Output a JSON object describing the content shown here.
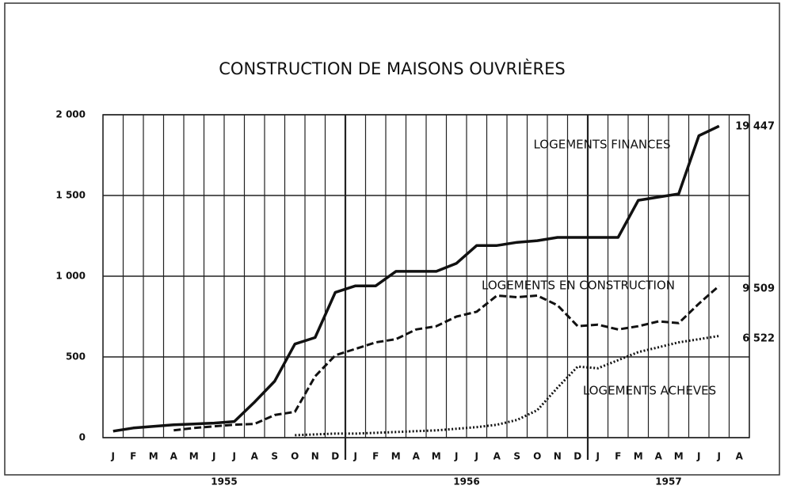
{
  "chart_data": {
    "type": "line",
    "title": "CONSTRUCTION DE MAISONS OUVRIÈRES",
    "categories": [
      "J",
      "F",
      "M",
      "A",
      "M",
      "J",
      "J",
      "A",
      "S",
      "O",
      "N",
      "D",
      "J",
      "F",
      "M",
      "A",
      "M",
      "J",
      "J",
      "A",
      "S",
      "O",
      "N",
      "D",
      "J",
      "F",
      "M",
      "A",
      "M",
      "J",
      "J",
      "A"
    ],
    "years": [
      "1955",
      "1956",
      "1957"
    ],
    "ylim": [
      0,
      2000
    ],
    "yticks": [
      0,
      500,
      {
        "value": 1000,
        "label": "1 000"
      },
      {
        "value": 1500,
        "label": "1 500"
      },
      {
        "value": 2000,
        "label": "2 000"
      }
    ],
    "grid": true,
    "series": [
      {
        "name": "LOGEMENTS FINANCES",
        "color": "#111111",
        "dash": "solid",
        "end_label": "19 447",
        "values": [
          40,
          60,
          70,
          80,
          85,
          90,
          100,
          220,
          350,
          580,
          620,
          900,
          940,
          940,
          1030,
          1030,
          1030,
          1080,
          1190,
          1190,
          1210,
          1220,
          1240,
          1240,
          1240,
          1240,
          1470,
          1490,
          1510,
          1870,
          1930,
          null
        ]
      },
      {
        "name": "LOGEMENTS EN CONSTRUCTION",
        "color": "#111111",
        "dash": "dashed",
        "end_label": "9 509",
        "values": [
          null,
          null,
          null,
          45,
          60,
          70,
          80,
          85,
          140,
          160,
          380,
          510,
          550,
          590,
          610,
          670,
          690,
          750,
          780,
          880,
          870,
          880,
          820,
          690,
          700,
          670,
          690,
          720,
          710,
          830,
          940,
          null
        ]
      },
      {
        "name": "LOGEMENTS ACHEVES",
        "color": "#111111",
        "dash": "dotted",
        "end_label": "6 522",
        "values": [
          null,
          null,
          null,
          null,
          null,
          null,
          null,
          null,
          null,
          15,
          20,
          25,
          25,
          30,
          35,
          40,
          45,
          55,
          65,
          80,
          110,
          170,
          310,
          440,
          430,
          480,
          530,
          560,
          590,
          610,
          630,
          null
        ]
      }
    ]
  }
}
